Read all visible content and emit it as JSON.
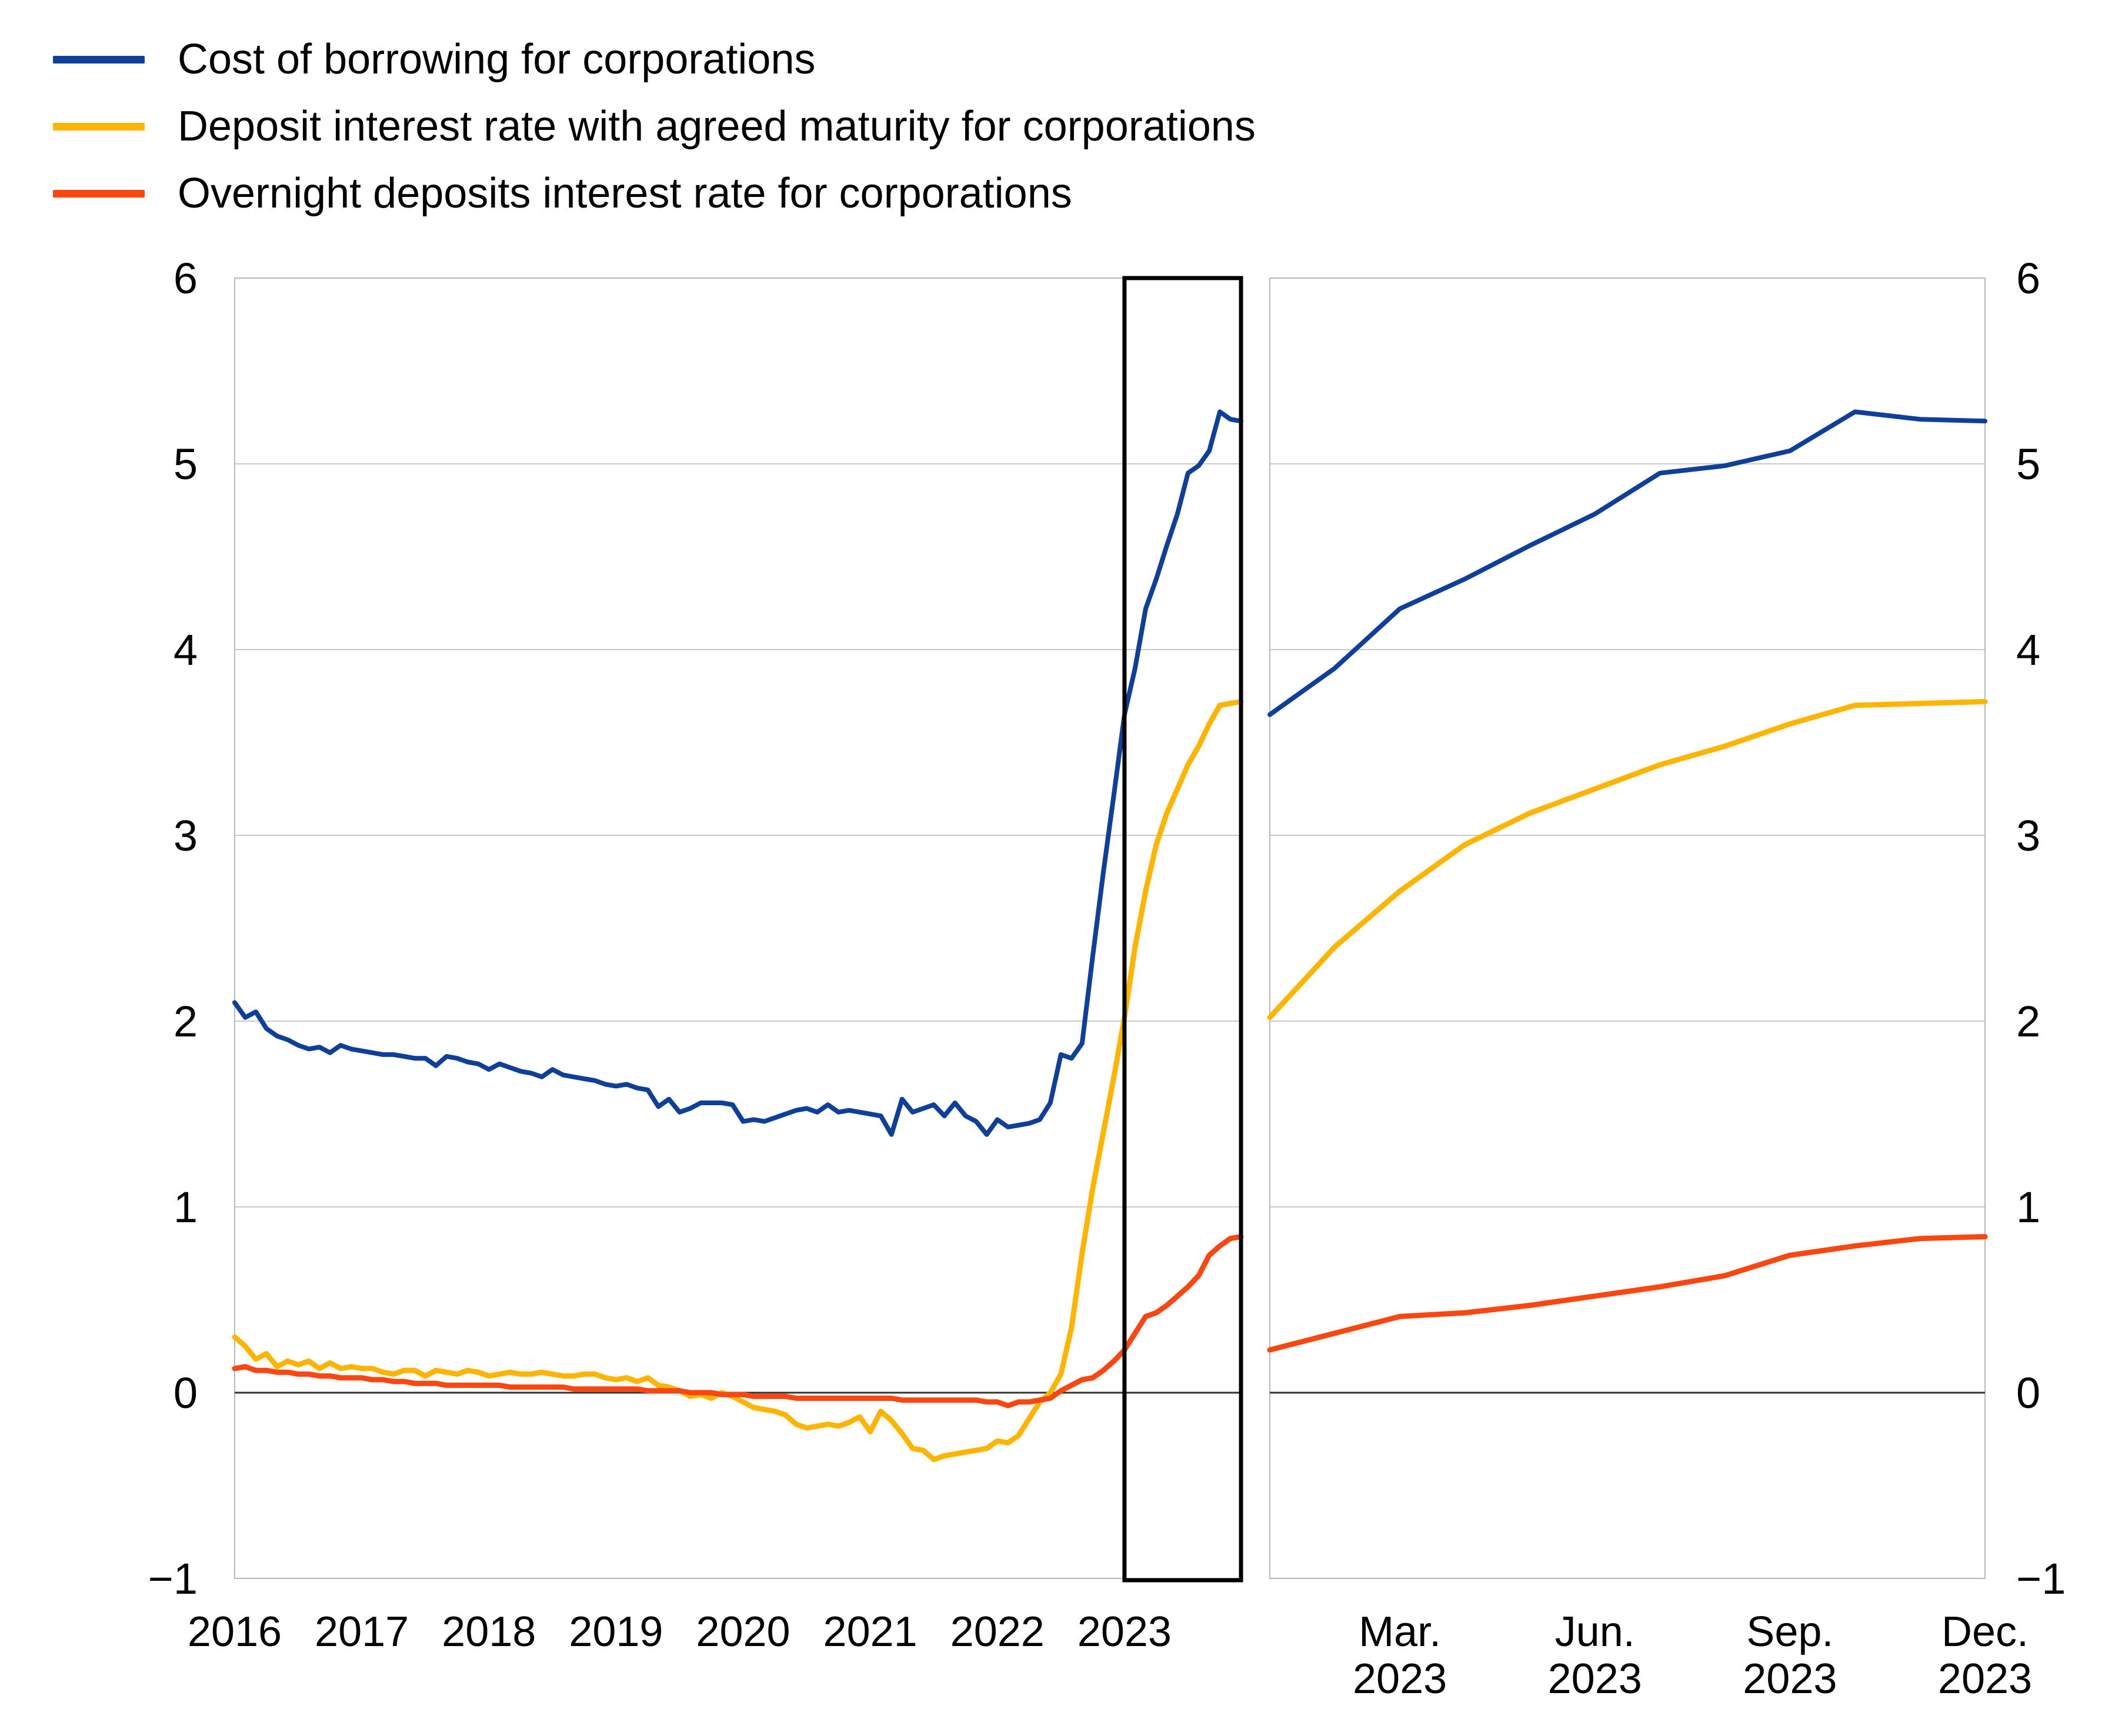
{
  "chart_data": {
    "type": "line",
    "title": "",
    "y_axis": {
      "min": -1,
      "max": 6,
      "ticks": [
        6,
        5,
        4,
        3,
        2,
        1,
        0,
        -1
      ],
      "tick_labels": [
        "6",
        "5",
        "4",
        "3",
        "2",
        "1",
        "0",
        "−1"
      ],
      "grid": true,
      "labels_on_left_and_right": true
    },
    "x_axis": {
      "start": "2016-01",
      "freq": "monthly",
      "n_points": 96,
      "tick_labels": [
        "2016",
        "2017",
        "2018",
        "2019",
        "2020",
        "2021",
        "2022",
        "2023"
      ],
      "tick_month_indices": [
        0,
        12,
        24,
        36,
        48,
        60,
        72,
        84
      ]
    },
    "highlight_box": {
      "from": "2023-01",
      "to": "2023-12",
      "color": "#000000"
    },
    "right_panel": {
      "start": "2023-01",
      "end": "2023-12",
      "x_tick_labels": [
        [
          "Mar.",
          "2023"
        ],
        [
          "Jun.",
          "2023"
        ],
        [
          "Sep.",
          "2023"
        ],
        [
          "Dec.",
          "2023"
        ]
      ],
      "tick_month_indices": [
        2,
        5,
        8,
        11
      ]
    },
    "series": [
      {
        "name": "Cost of borrowing for corporations",
        "color": "#0e3f9a",
        "stroke_width": 8,
        "values": [
          2.1,
          2.02,
          2.05,
          1.96,
          1.92,
          1.9,
          1.87,
          1.85,
          1.86,
          1.83,
          1.87,
          1.85,
          1.84,
          1.83,
          1.82,
          1.82,
          1.81,
          1.8,
          1.8,
          1.76,
          1.81,
          1.8,
          1.78,
          1.77,
          1.74,
          1.77,
          1.75,
          1.73,
          1.72,
          1.7,
          1.74,
          1.71,
          1.7,
          1.69,
          1.68,
          1.66,
          1.65,
          1.66,
          1.64,
          1.63,
          1.54,
          1.58,
          1.51,
          1.53,
          1.56,
          1.56,
          1.56,
          1.55,
          1.46,
          1.47,
          1.46,
          1.48,
          1.5,
          1.52,
          1.53,
          1.51,
          1.55,
          1.51,
          1.52,
          1.51,
          1.5,
          1.49,
          1.39,
          1.58,
          1.51,
          1.53,
          1.55,
          1.49,
          1.56,
          1.49,
          1.46,
          1.39,
          1.47,
          1.43,
          1.44,
          1.45,
          1.47,
          1.56,
          1.82,
          1.8,
          1.88,
          2.35,
          2.8,
          3.22,
          3.65,
          3.9,
          4.22,
          4.38,
          4.56,
          4.73,
          4.95,
          4.99,
          5.07,
          5.28,
          5.24,
          5.23
        ]
      },
      {
        "name": "Deposit interest rate with agreed maturity for corporations",
        "color": "#ffb400",
        "stroke_width": 9,
        "values": [
          0.3,
          0.25,
          0.18,
          0.21,
          0.14,
          0.17,
          0.15,
          0.17,
          0.13,
          0.16,
          0.13,
          0.14,
          0.13,
          0.13,
          0.11,
          0.1,
          0.12,
          0.12,
          0.09,
          0.12,
          0.11,
          0.1,
          0.12,
          0.11,
          0.09,
          0.1,
          0.11,
          0.1,
          0.1,
          0.11,
          0.1,
          0.09,
          0.09,
          0.1,
          0.1,
          0.08,
          0.07,
          0.08,
          0.06,
          0.08,
          0.04,
          0.03,
          0.01,
          -0.02,
          -0.01,
          -0.03,
          0.0,
          -0.02,
          -0.05,
          -0.08,
          -0.09,
          -0.1,
          -0.12,
          -0.17,
          -0.19,
          -0.18,
          -0.17,
          -0.18,
          -0.16,
          -0.13,
          -0.21,
          -0.1,
          -0.15,
          -0.22,
          -0.3,
          -0.31,
          -0.36,
          -0.34,
          -0.33,
          -0.32,
          -0.31,
          -0.3,
          -0.26,
          -0.27,
          -0.23,
          -0.14,
          -0.05,
          0.0,
          0.1,
          0.35,
          0.75,
          1.1,
          1.4,
          1.7,
          2.02,
          2.4,
          2.7,
          2.95,
          3.12,
          3.25,
          3.38,
          3.48,
          3.6,
          3.7,
          3.71,
          3.72
        ]
      },
      {
        "name": "Overnight deposits interest rate for corporations",
        "color": "#fa4610",
        "stroke_width": 9,
        "values": [
          0.13,
          0.14,
          0.12,
          0.12,
          0.11,
          0.11,
          0.1,
          0.1,
          0.09,
          0.09,
          0.08,
          0.08,
          0.08,
          0.07,
          0.07,
          0.06,
          0.06,
          0.05,
          0.05,
          0.05,
          0.04,
          0.04,
          0.04,
          0.04,
          0.04,
          0.04,
          0.03,
          0.03,
          0.03,
          0.03,
          0.03,
          0.03,
          0.02,
          0.02,
          0.02,
          0.02,
          0.02,
          0.02,
          0.02,
          0.01,
          0.01,
          0.01,
          0.01,
          0.0,
          0.0,
          0.0,
          -0.01,
          -0.01,
          -0.01,
          -0.02,
          -0.02,
          -0.02,
          -0.02,
          -0.03,
          -0.03,
          -0.03,
          -0.03,
          -0.03,
          -0.03,
          -0.03,
          -0.03,
          -0.03,
          -0.03,
          -0.04,
          -0.04,
          -0.04,
          -0.04,
          -0.04,
          -0.04,
          -0.04,
          -0.04,
          -0.05,
          -0.05,
          -0.07,
          -0.05,
          -0.05,
          -0.04,
          -0.03,
          0.01,
          0.04,
          0.07,
          0.08,
          0.12,
          0.17,
          0.23,
          0.32,
          0.41,
          0.43,
          0.47,
          0.52,
          0.57,
          0.63,
          0.74,
          0.79,
          0.83,
          0.84
        ]
      }
    ],
    "colors": {
      "gridline": "#c9c9c9",
      "zero_line": "#333333",
      "frame": "#b3b9bd",
      "text": "#000000"
    },
    "legend_position": "top-left"
  }
}
